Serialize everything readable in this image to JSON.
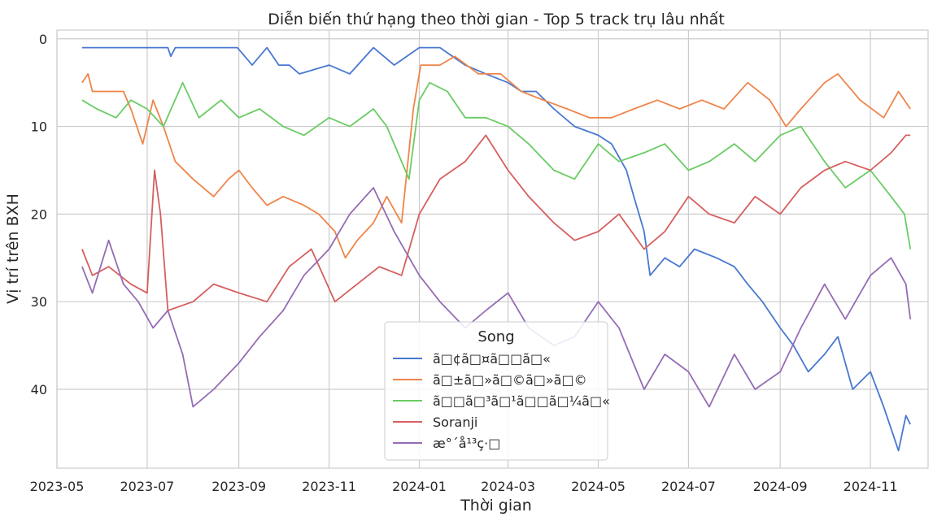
{
  "chart_data": {
    "type": "line",
    "title": "Diễn biến thứ hạng theo thời gian - Top 5 track trụ lâu nhất",
    "xlabel": "Thời gian",
    "ylabel": "Vị trí trên BXH",
    "x_ticks": [
      "2023-05",
      "2023-07",
      "2023-09",
      "2023-11",
      "2024-01",
      "2024-03",
      "2024-05",
      "2024-07",
      "2024-09",
      "2024-11"
    ],
    "y_ticks": [
      "0",
      "10",
      "20",
      "30",
      "40"
    ],
    "y_inverted": true,
    "ylim": [
      -1,
      49
    ],
    "xlim": [
      "2023-05-01",
      "2024-12-10"
    ],
    "grid": true,
    "legend": {
      "title": "Song",
      "placement": "bottom-center",
      "entries": [
        "ã□¢ã□¤ã□□ã□«",
        "ã□±ã□»ã□©ã□»ã□©",
        "ã□□ã□³ã□¹ã□□ã□¼ã□«",
        "Soranji",
        "æ°´å¹³ç·□"
      ]
    },
    "series": [
      {
        "name": "ã□¢ã□¤ã□□ã□«",
        "color": "#4878d0",
        "points": [
          [
            "2023-05-18",
            1
          ],
          [
            "2023-07-15",
            1
          ],
          [
            "2023-07-17",
            2
          ],
          [
            "2023-07-20",
            1
          ],
          [
            "2023-08-31",
            1
          ],
          [
            "2023-09-10",
            3
          ],
          [
            "2023-09-20",
            1
          ],
          [
            "2023-09-28",
            3
          ],
          [
            "2023-10-05",
            3
          ],
          [
            "2023-10-12",
            4
          ],
          [
            "2023-11-01",
            3
          ],
          [
            "2023-11-15",
            4
          ],
          [
            "2023-12-01",
            1
          ],
          [
            "2023-12-15",
            3
          ],
          [
            "2024-01-01",
            1
          ],
          [
            "2024-01-15",
            1
          ],
          [
            "2024-02-01",
            3
          ],
          [
            "2024-02-15",
            4
          ],
          [
            "2024-03-01",
            5
          ],
          [
            "2024-03-10",
            6
          ],
          [
            "2024-03-20",
            6
          ],
          [
            "2024-04-01",
            8
          ],
          [
            "2024-04-15",
            10
          ],
          [
            "2024-05-01",
            11
          ],
          [
            "2024-05-10",
            12
          ],
          [
            "2024-05-20",
            15
          ],
          [
            "2024-05-25",
            18
          ],
          [
            "2024-06-01",
            22
          ],
          [
            "2024-06-05",
            27
          ],
          [
            "2024-06-15",
            25
          ],
          [
            "2024-06-25",
            26
          ],
          [
            "2024-07-05",
            24
          ],
          [
            "2024-07-20",
            25
          ],
          [
            "2024-08-01",
            26
          ],
          [
            "2024-08-10",
            28
          ],
          [
            "2024-08-20",
            30
          ],
          [
            "2024-09-01",
            33
          ],
          [
            "2024-09-10",
            35
          ],
          [
            "2024-09-20",
            38
          ],
          [
            "2024-10-01",
            36
          ],
          [
            "2024-10-10",
            34
          ],
          [
            "2024-10-20",
            40
          ],
          [
            "2024-11-01",
            38
          ],
          [
            "2024-11-10",
            42
          ],
          [
            "2024-11-20",
            47
          ],
          [
            "2024-11-25",
            43
          ],
          [
            "2024-11-28",
            44
          ]
        ]
      },
      {
        "name": "ã□±ã□»ã□©ã□»ã□©",
        "color": "#ee854a",
        "points": [
          [
            "2023-05-18",
            5
          ],
          [
            "2023-05-22",
            4
          ],
          [
            "2023-05-25",
            6
          ],
          [
            "2023-06-15",
            6
          ],
          [
            "2023-06-20",
            8
          ],
          [
            "2023-06-28",
            12
          ],
          [
            "2023-07-05",
            7
          ],
          [
            "2023-07-12",
            10
          ],
          [
            "2023-07-20",
            14
          ],
          [
            "2023-08-01",
            16
          ],
          [
            "2023-08-15",
            18
          ],
          [
            "2023-08-25",
            16
          ],
          [
            "2023-09-01",
            15
          ],
          [
            "2023-09-10",
            17
          ],
          [
            "2023-09-20",
            19
          ],
          [
            "2023-10-01",
            18
          ],
          [
            "2023-10-15",
            19
          ],
          [
            "2023-10-25",
            20
          ],
          [
            "2023-11-05",
            22
          ],
          [
            "2023-11-12",
            25
          ],
          [
            "2023-11-20",
            23
          ],
          [
            "2023-12-01",
            21
          ],
          [
            "2023-12-10",
            18
          ],
          [
            "2023-12-20",
            21
          ],
          [
            "2023-12-28",
            8
          ],
          [
            "2024-01-02",
            3
          ],
          [
            "2024-01-15",
            3
          ],
          [
            "2024-01-25",
            2
          ],
          [
            "2024-02-10",
            4
          ],
          [
            "2024-02-25",
            4
          ],
          [
            "2024-03-10",
            6
          ],
          [
            "2024-03-25",
            7
          ],
          [
            "2024-04-10",
            8
          ],
          [
            "2024-04-25",
            9
          ],
          [
            "2024-05-10",
            9
          ],
          [
            "2024-05-25",
            8
          ],
          [
            "2024-06-10",
            7
          ],
          [
            "2024-06-25",
            8
          ],
          [
            "2024-07-10",
            7
          ],
          [
            "2024-07-25",
            8
          ],
          [
            "2024-08-10",
            5
          ],
          [
            "2024-08-25",
            7
          ],
          [
            "2024-09-05",
            10
          ],
          [
            "2024-09-15",
            8
          ],
          [
            "2024-10-01",
            5
          ],
          [
            "2024-10-10",
            4
          ],
          [
            "2024-10-25",
            7
          ],
          [
            "2024-11-10",
            9
          ],
          [
            "2024-11-20",
            6
          ],
          [
            "2024-11-28",
            8
          ]
        ]
      },
      {
        "name": "ã□□ã□³ã□¹ã□□ã□¼ã□«",
        "color": "#6acc64",
        "points": [
          [
            "2023-05-18",
            7
          ],
          [
            "2023-05-28",
            8
          ],
          [
            "2023-06-10",
            9
          ],
          [
            "2023-06-20",
            7
          ],
          [
            "2023-07-01",
            8
          ],
          [
            "2023-07-12",
            10
          ],
          [
            "2023-07-25",
            5
          ],
          [
            "2023-08-05",
            9
          ],
          [
            "2023-08-20",
            7
          ],
          [
            "2023-09-01",
            9
          ],
          [
            "2023-09-15",
            8
          ],
          [
            "2023-10-01",
            10
          ],
          [
            "2023-10-15",
            11
          ],
          [
            "2023-11-01",
            9
          ],
          [
            "2023-11-15",
            10
          ],
          [
            "2023-12-01",
            8
          ],
          [
            "2023-12-10",
            10
          ],
          [
            "2023-12-20",
            14
          ],
          [
            "2023-12-25",
            16
          ],
          [
            "2024-01-01",
            7
          ],
          [
            "2024-01-08",
            5
          ],
          [
            "2024-01-20",
            6
          ],
          [
            "2024-02-01",
            9
          ],
          [
            "2024-02-15",
            9
          ],
          [
            "2024-03-01",
            10
          ],
          [
            "2024-03-15",
            12
          ],
          [
            "2024-04-01",
            15
          ],
          [
            "2024-04-15",
            16
          ],
          [
            "2024-05-01",
            12
          ],
          [
            "2024-05-15",
            14
          ],
          [
            "2024-06-01",
            13
          ],
          [
            "2024-06-15",
            12
          ],
          [
            "2024-07-01",
            15
          ],
          [
            "2024-07-15",
            14
          ],
          [
            "2024-08-01",
            12
          ],
          [
            "2024-08-15",
            14
          ],
          [
            "2024-09-01",
            11
          ],
          [
            "2024-09-15",
            10
          ],
          [
            "2024-10-01",
            14
          ],
          [
            "2024-10-15",
            17
          ],
          [
            "2024-11-01",
            15
          ],
          [
            "2024-11-15",
            18
          ],
          [
            "2024-11-24",
            20
          ],
          [
            "2024-11-28",
            24
          ]
        ]
      },
      {
        "name": "Soranji",
        "color": "#d65f5f",
        "points": [
          [
            "2023-05-18",
            24
          ],
          [
            "2023-05-25",
            27
          ],
          [
            "2023-06-05",
            26
          ],
          [
            "2023-06-20",
            28
          ],
          [
            "2023-07-01",
            29
          ],
          [
            "2023-07-06",
            15
          ],
          [
            "2023-07-10",
            20
          ],
          [
            "2023-07-15",
            31
          ],
          [
            "2023-08-01",
            30
          ],
          [
            "2023-08-15",
            28
          ],
          [
            "2023-09-01",
            29
          ],
          [
            "2023-09-20",
            30
          ],
          [
            "2023-10-05",
            26
          ],
          [
            "2023-10-20",
            24
          ],
          [
            "2023-11-05",
            30
          ],
          [
            "2023-11-20",
            28
          ],
          [
            "2023-12-05",
            26
          ],
          [
            "2023-12-20",
            27
          ],
          [
            "2024-01-01",
            20
          ],
          [
            "2024-01-15",
            16
          ],
          [
            "2024-02-01",
            14
          ],
          [
            "2024-02-15",
            11
          ],
          [
            "2024-03-01",
            15
          ],
          [
            "2024-03-15",
            18
          ],
          [
            "2024-04-01",
            21
          ],
          [
            "2024-04-15",
            23
          ],
          [
            "2024-05-01",
            22
          ],
          [
            "2024-05-15",
            20
          ],
          [
            "2024-06-01",
            24
          ],
          [
            "2024-06-15",
            22
          ],
          [
            "2024-07-01",
            18
          ],
          [
            "2024-07-15",
            20
          ],
          [
            "2024-08-01",
            21
          ],
          [
            "2024-08-15",
            18
          ],
          [
            "2024-09-01",
            20
          ],
          [
            "2024-09-15",
            17
          ],
          [
            "2024-10-01",
            15
          ],
          [
            "2024-10-15",
            14
          ],
          [
            "2024-11-01",
            15
          ],
          [
            "2024-11-15",
            13
          ],
          [
            "2024-11-25",
            11
          ],
          [
            "2024-11-28",
            11
          ]
        ]
      },
      {
        "name": "æ°´å¹³ç·□",
        "color": "#956cb4",
        "points": [
          [
            "2023-05-18",
            26
          ],
          [
            "2023-05-25",
            29
          ],
          [
            "2023-06-05",
            23
          ],
          [
            "2023-06-15",
            28
          ],
          [
            "2023-06-25",
            30
          ],
          [
            "2023-07-05",
            33
          ],
          [
            "2023-07-15",
            31
          ],
          [
            "2023-07-25",
            36
          ],
          [
            "2023-08-01",
            42
          ],
          [
            "2023-08-15",
            40
          ],
          [
            "2023-09-01",
            37
          ],
          [
            "2023-09-15",
            34
          ],
          [
            "2023-10-01",
            31
          ],
          [
            "2023-10-15",
            27
          ],
          [
            "2023-11-01",
            24
          ],
          [
            "2023-11-15",
            20
          ],
          [
            "2023-12-01",
            17
          ],
          [
            "2023-12-15",
            22
          ],
          [
            "2024-01-01",
            27
          ],
          [
            "2024-01-15",
            30
          ],
          [
            "2024-02-01",
            33
          ],
          [
            "2024-02-15",
            31
          ],
          [
            "2024-03-01",
            29
          ],
          [
            "2024-03-15",
            33
          ],
          [
            "2024-04-01",
            35
          ],
          [
            "2024-04-15",
            34
          ],
          [
            "2024-05-01",
            30
          ],
          [
            "2024-05-15",
            33
          ],
          [
            "2024-06-01",
            40
          ],
          [
            "2024-06-15",
            36
          ],
          [
            "2024-07-01",
            38
          ],
          [
            "2024-07-15",
            42
          ],
          [
            "2024-08-01",
            36
          ],
          [
            "2024-08-15",
            40
          ],
          [
            "2024-09-01",
            38
          ],
          [
            "2024-09-15",
            33
          ],
          [
            "2024-10-01",
            28
          ],
          [
            "2024-10-15",
            32
          ],
          [
            "2024-11-01",
            27
          ],
          [
            "2024-11-15",
            25
          ],
          [
            "2024-11-25",
            28
          ],
          [
            "2024-11-28",
            32
          ]
        ]
      }
    ]
  }
}
